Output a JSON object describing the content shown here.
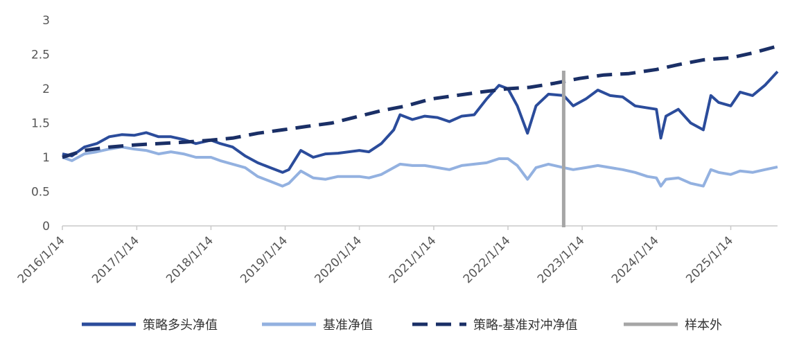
{
  "chart_data": {
    "type": "line",
    "title": "",
    "xlabel": "",
    "ylabel": "",
    "ylim": [
      0,
      3
    ],
    "y_ticks": [
      "0",
      "0.5",
      "1",
      "1.5",
      "2",
      "2.5",
      "3"
    ],
    "x_ticks": [
      "2016/1/14",
      "2017/1/14",
      "2018/1/14",
      "2019/1/14",
      "2020/1/14",
      "2021/1/14",
      "2022/1/14",
      "2023/1/14",
      "2024/1/14",
      "2025/1/14"
    ],
    "x_range": [
      "2016/1/14",
      "2025/9/1"
    ],
    "grid": false,
    "legend_position": "bottom",
    "out_of_sample_date": "2022/10/15",
    "colors": {
      "long": "#2b4c9b",
      "benchmark": "#93b1e0",
      "hedge": "#1a2f66",
      "sample": "#a6a6a6",
      "axis": "#c9c9c9"
    },
    "series": [
      {
        "name": "策略多头净值",
        "key": "long",
        "style": "solid",
        "points": [
          [
            "2016/1/14",
            1.05
          ],
          [
            "2016/3/1",
            1.02
          ],
          [
            "2016/5/1",
            1.15
          ],
          [
            "2016/7/1",
            1.2
          ],
          [
            "2016/9/1",
            1.3
          ],
          [
            "2016/11/1",
            1.33
          ],
          [
            "2017/1/1",
            1.32
          ],
          [
            "2017/3/1",
            1.36
          ],
          [
            "2017/5/1",
            1.3
          ],
          [
            "2017/7/1",
            1.3
          ],
          [
            "2017/9/1",
            1.26
          ],
          [
            "2017/11/1",
            1.2
          ],
          [
            "2018/1/14",
            1.25
          ],
          [
            "2018/3/1",
            1.2
          ],
          [
            "2018/5/1",
            1.15
          ],
          [
            "2018/7/1",
            1.02
          ],
          [
            "2018/9/1",
            0.92
          ],
          [
            "2018/11/1",
            0.85
          ],
          [
            "2019/1/1",
            0.78
          ],
          [
            "2019/2/1",
            0.82
          ],
          [
            "2019/4/1",
            1.1
          ],
          [
            "2019/6/1",
            1.0
          ],
          [
            "2019/8/1",
            1.05
          ],
          [
            "2019/10/1",
            1.06
          ],
          [
            "2020/1/14",
            1.1
          ],
          [
            "2020/3/1",
            1.08
          ],
          [
            "2020/5/1",
            1.2
          ],
          [
            "2020/7/1",
            1.4
          ],
          [
            "2020/8/1",
            1.62
          ],
          [
            "2020/10/1",
            1.55
          ],
          [
            "2020/12/1",
            1.6
          ],
          [
            "2021/2/1",
            1.58
          ],
          [
            "2021/4/1",
            1.52
          ],
          [
            "2021/6/1",
            1.6
          ],
          [
            "2021/8/1",
            1.62
          ],
          [
            "2021/10/1",
            1.85
          ],
          [
            "2021/12/1",
            2.05
          ],
          [
            "2022/1/14",
            2.0
          ],
          [
            "2022/3/1",
            1.75
          ],
          [
            "2022/4/20",
            1.35
          ],
          [
            "2022/6/1",
            1.75
          ],
          [
            "2022/8/1",
            1.92
          ],
          [
            "2022/10/15",
            1.9
          ],
          [
            "2022/12/1",
            1.75
          ],
          [
            "2023/2/1",
            1.85
          ],
          [
            "2023/4/1",
            1.98
          ],
          [
            "2023/6/1",
            1.9
          ],
          [
            "2023/8/1",
            1.88
          ],
          [
            "2023/10/1",
            1.75
          ],
          [
            "2023/12/1",
            1.72
          ],
          [
            "2024/1/14",
            1.7
          ],
          [
            "2024/2/5",
            1.28
          ],
          [
            "2024/3/1",
            1.6
          ],
          [
            "2024/5/1",
            1.7
          ],
          [
            "2024/7/1",
            1.5
          ],
          [
            "2024/9/1",
            1.4
          ],
          [
            "2024/10/8",
            1.9
          ],
          [
            "2024/11/15",
            1.8
          ],
          [
            "2025/1/14",
            1.75
          ],
          [
            "2025/3/1",
            1.95
          ],
          [
            "2025/5/1",
            1.9
          ],
          [
            "2025/7/1",
            2.05
          ],
          [
            "2025/9/1",
            2.25
          ]
        ]
      },
      {
        "name": "基准净值",
        "key": "benchmark",
        "style": "solid",
        "points": [
          [
            "2016/1/14",
            1.0
          ],
          [
            "2016/3/1",
            0.95
          ],
          [
            "2016/5/1",
            1.05
          ],
          [
            "2016/7/1",
            1.08
          ],
          [
            "2016/9/1",
            1.12
          ],
          [
            "2016/11/1",
            1.15
          ],
          [
            "2017/1/1",
            1.12
          ],
          [
            "2017/3/1",
            1.1
          ],
          [
            "2017/5/1",
            1.05
          ],
          [
            "2017/7/1",
            1.08
          ],
          [
            "2017/9/1",
            1.05
          ],
          [
            "2017/11/1",
            1.0
          ],
          [
            "2018/1/14",
            1.0
          ],
          [
            "2018/3/1",
            0.95
          ],
          [
            "2018/5/1",
            0.9
          ],
          [
            "2018/7/1",
            0.85
          ],
          [
            "2018/9/1",
            0.72
          ],
          [
            "2018/11/1",
            0.65
          ],
          [
            "2019/1/1",
            0.58
          ],
          [
            "2019/2/1",
            0.62
          ],
          [
            "2019/4/1",
            0.8
          ],
          [
            "2019/6/1",
            0.7
          ],
          [
            "2019/8/1",
            0.68
          ],
          [
            "2019/10/1",
            0.72
          ],
          [
            "2020/1/14",
            0.72
          ],
          [
            "2020/3/1",
            0.7
          ],
          [
            "2020/5/1",
            0.75
          ],
          [
            "2020/7/1",
            0.85
          ],
          [
            "2020/8/1",
            0.9
          ],
          [
            "2020/10/1",
            0.88
          ],
          [
            "2020/12/1",
            0.88
          ],
          [
            "2021/2/1",
            0.85
          ],
          [
            "2021/4/1",
            0.82
          ],
          [
            "2021/6/1",
            0.88
          ],
          [
            "2021/8/1",
            0.9
          ],
          [
            "2021/10/1",
            0.92
          ],
          [
            "2021/12/1",
            0.98
          ],
          [
            "2022/1/14",
            0.98
          ],
          [
            "2022/3/1",
            0.88
          ],
          [
            "2022/4/20",
            0.68
          ],
          [
            "2022/6/1",
            0.85
          ],
          [
            "2022/8/1",
            0.9
          ],
          [
            "2022/10/15",
            0.85
          ],
          [
            "2022/12/1",
            0.82
          ],
          [
            "2023/2/1",
            0.85
          ],
          [
            "2023/4/1",
            0.88
          ],
          [
            "2023/6/1",
            0.85
          ],
          [
            "2023/8/1",
            0.82
          ],
          [
            "2023/10/1",
            0.78
          ],
          [
            "2023/12/1",
            0.72
          ],
          [
            "2024/1/14",
            0.7
          ],
          [
            "2024/2/5",
            0.58
          ],
          [
            "2024/3/1",
            0.68
          ],
          [
            "2024/5/1",
            0.7
          ],
          [
            "2024/7/1",
            0.62
          ],
          [
            "2024/9/1",
            0.58
          ],
          [
            "2024/10/8",
            0.82
          ],
          [
            "2024/11/15",
            0.78
          ],
          [
            "2025/1/14",
            0.75
          ],
          [
            "2025/3/1",
            0.8
          ],
          [
            "2025/5/1",
            0.78
          ],
          [
            "2025/7/1",
            0.82
          ],
          [
            "2025/9/1",
            0.86
          ]
        ]
      },
      {
        "name": "策略-基准对冲净值",
        "key": "hedge",
        "style": "dashed",
        "points": [
          [
            "2016/1/14",
            1.0
          ],
          [
            "2016/5/1",
            1.1
          ],
          [
            "2016/9/1",
            1.15
          ],
          [
            "2017/1/1",
            1.18
          ],
          [
            "2017/5/1",
            1.2
          ],
          [
            "2017/9/1",
            1.22
          ],
          [
            "2018/1/14",
            1.25
          ],
          [
            "2018/5/1",
            1.28
          ],
          [
            "2018/9/1",
            1.35
          ],
          [
            "2019/1/1",
            1.4
          ],
          [
            "2019/5/1",
            1.45
          ],
          [
            "2019/9/1",
            1.5
          ],
          [
            "2020/1/14",
            1.6
          ],
          [
            "2020/5/1",
            1.68
          ],
          [
            "2020/9/1",
            1.75
          ],
          [
            "2021/1/1",
            1.85
          ],
          [
            "2021/5/1",
            1.9
          ],
          [
            "2021/9/1",
            1.95
          ],
          [
            "2022/1/14",
            2.0
          ],
          [
            "2022/5/1",
            2.02
          ],
          [
            "2022/9/1",
            2.08
          ],
          [
            "2023/1/1",
            2.15
          ],
          [
            "2023/5/1",
            2.2
          ],
          [
            "2023/9/1",
            2.22
          ],
          [
            "2024/1/14",
            2.28
          ],
          [
            "2024/5/1",
            2.35
          ],
          [
            "2024/9/1",
            2.42
          ],
          [
            "2025/1/14",
            2.45
          ],
          [
            "2025/5/1",
            2.52
          ],
          [
            "2025/9/1",
            2.62
          ]
        ]
      }
    ],
    "legend": [
      "策略多头净值",
      "基准净值",
      "策略-基准对冲净值",
      "样本外"
    ]
  }
}
